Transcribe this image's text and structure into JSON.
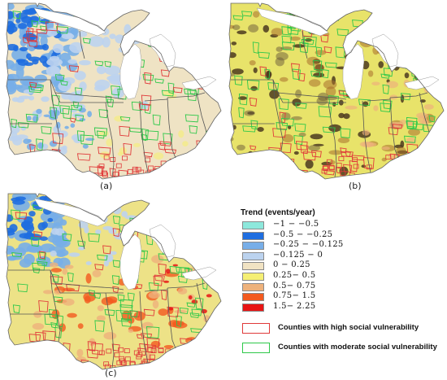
{
  "panels": [
    {
      "id": "a",
      "label": "(a)",
      "base": "#efe3c4"
    },
    {
      "id": "b",
      "label": "(b)",
      "base": "#e8e36a"
    },
    {
      "id": "c",
      "label": "(c)",
      "base": "#ede287"
    }
  ],
  "legend": {
    "title": "Trend (events/year)",
    "classes": [
      {
        "range": "−1 − −0.5",
        "color": "#8de8dc"
      },
      {
        "range": "−0.5 − −0.25",
        "color": "#1f6ee0"
      },
      {
        "range": "−0.25 − −0.125",
        "color": "#77aee8"
      },
      {
        "range": "−0.125 − 0",
        "color": "#bcd3ef"
      },
      {
        "range": "0 − 0.25",
        "color": "#f1e3c3"
      },
      {
        "range": "0.25− 0.5",
        "color": "#f5ef74"
      },
      {
        "range": "0.5− 0.75",
        "color": "#eeb27c"
      },
      {
        "range": "0.75− 1.5",
        "color": "#f25a1f"
      },
      {
        "range": "1.5− 2.25",
        "color": "#e81414"
      }
    ],
    "high_vulnerability": {
      "label": "Counties with high social vulnerability",
      "color": "#e03a3a"
    },
    "moderate_vulnerability": {
      "label": "Counties with moderate social vulnerability",
      "color": "#2ec84a"
    }
  },
  "colors": {
    "lake": "#ffffff",
    "state_border": "#555555",
    "dark_trend": "#4b3a1e"
  }
}
